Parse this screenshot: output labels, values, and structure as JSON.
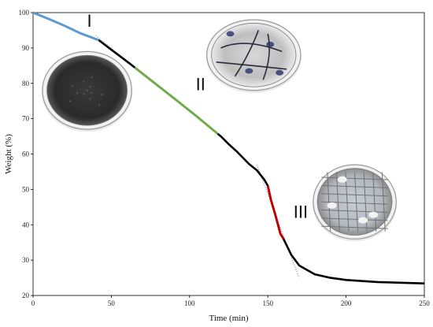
{
  "chart_data": {
    "type": "line",
    "xlabel": "Time (min)",
    "ylabel": "Weight (%)",
    "xlim": [
      0,
      250
    ],
    "ylim": [
      20,
      100
    ],
    "xticks": [
      0,
      50,
      100,
      150,
      200,
      250
    ],
    "yticks": [
      20,
      30,
      40,
      50,
      60,
      70,
      80,
      90,
      100
    ],
    "grid": false,
    "series": [
      {
        "color": "#000000",
        "points": [
          [
            0,
            100
          ],
          [
            10,
            98.2
          ],
          [
            20,
            96.3
          ],
          [
            30,
            94.2
          ],
          [
            42,
            92.2
          ],
          [
            50,
            89.5
          ],
          [
            62,
            85.5
          ],
          [
            75,
            81
          ],
          [
            90,
            75.8
          ],
          [
            105,
            70.5
          ],
          [
            120,
            65
          ],
          [
            125,
            62.8
          ],
          [
            130,
            60.8
          ],
          [
            138,
            57.2
          ],
          [
            143,
            55.4
          ],
          [
            148,
            52.6
          ],
          [
            150,
            51
          ],
          [
            152,
            47
          ],
          [
            155,
            42.5
          ],
          [
            158,
            37.5
          ],
          [
            160,
            36
          ],
          [
            165,
            31.5
          ],
          [
            170,
            28.5
          ],
          [
            180,
            26
          ],
          [
            190,
            25
          ],
          [
            200,
            24.4
          ],
          [
            220,
            23.8
          ],
          [
            250,
            23.4
          ]
        ]
      }
    ],
    "highlights": [
      {
        "from": 0,
        "to": 42,
        "color": "#5b9bd5"
      },
      {
        "from": 65,
        "to": 118,
        "color": "#70ad47"
      },
      {
        "from": 150,
        "to": 160,
        "color": "#c00000"
      }
    ],
    "tangents": [
      {
        "points": [
          [
            40,
            93.5
          ],
          [
            67,
            84
          ]
        ],
        "color": "#7f9fc0"
      },
      {
        "points": [
          [
            143,
            57
          ],
          [
            170,
            25
          ]
        ],
        "color": "#6f8fb0"
      }
    ],
    "annotations": [
      {
        "text": "I",
        "x": 36,
        "y": 96
      },
      {
        "text": "II",
        "x": 107,
        "y": 78
      },
      {
        "text": "III",
        "x": 171,
        "y": 42
      }
    ],
    "photos": [
      {
        "name": "dish-1",
        "x0": 6,
        "x1": 63,
        "y0": 67,
        "y1": 89,
        "kind": "dark"
      },
      {
        "name": "dish-2",
        "x0": 111,
        "x1": 171,
        "y0": 78,
        "y1": 98,
        "kind": "cracked-dark"
      },
      {
        "name": "dish-3",
        "x0": 179,
        "x1": 232,
        "y0": 36,
        "y1": 57,
        "kind": "cracked-white"
      }
    ]
  }
}
